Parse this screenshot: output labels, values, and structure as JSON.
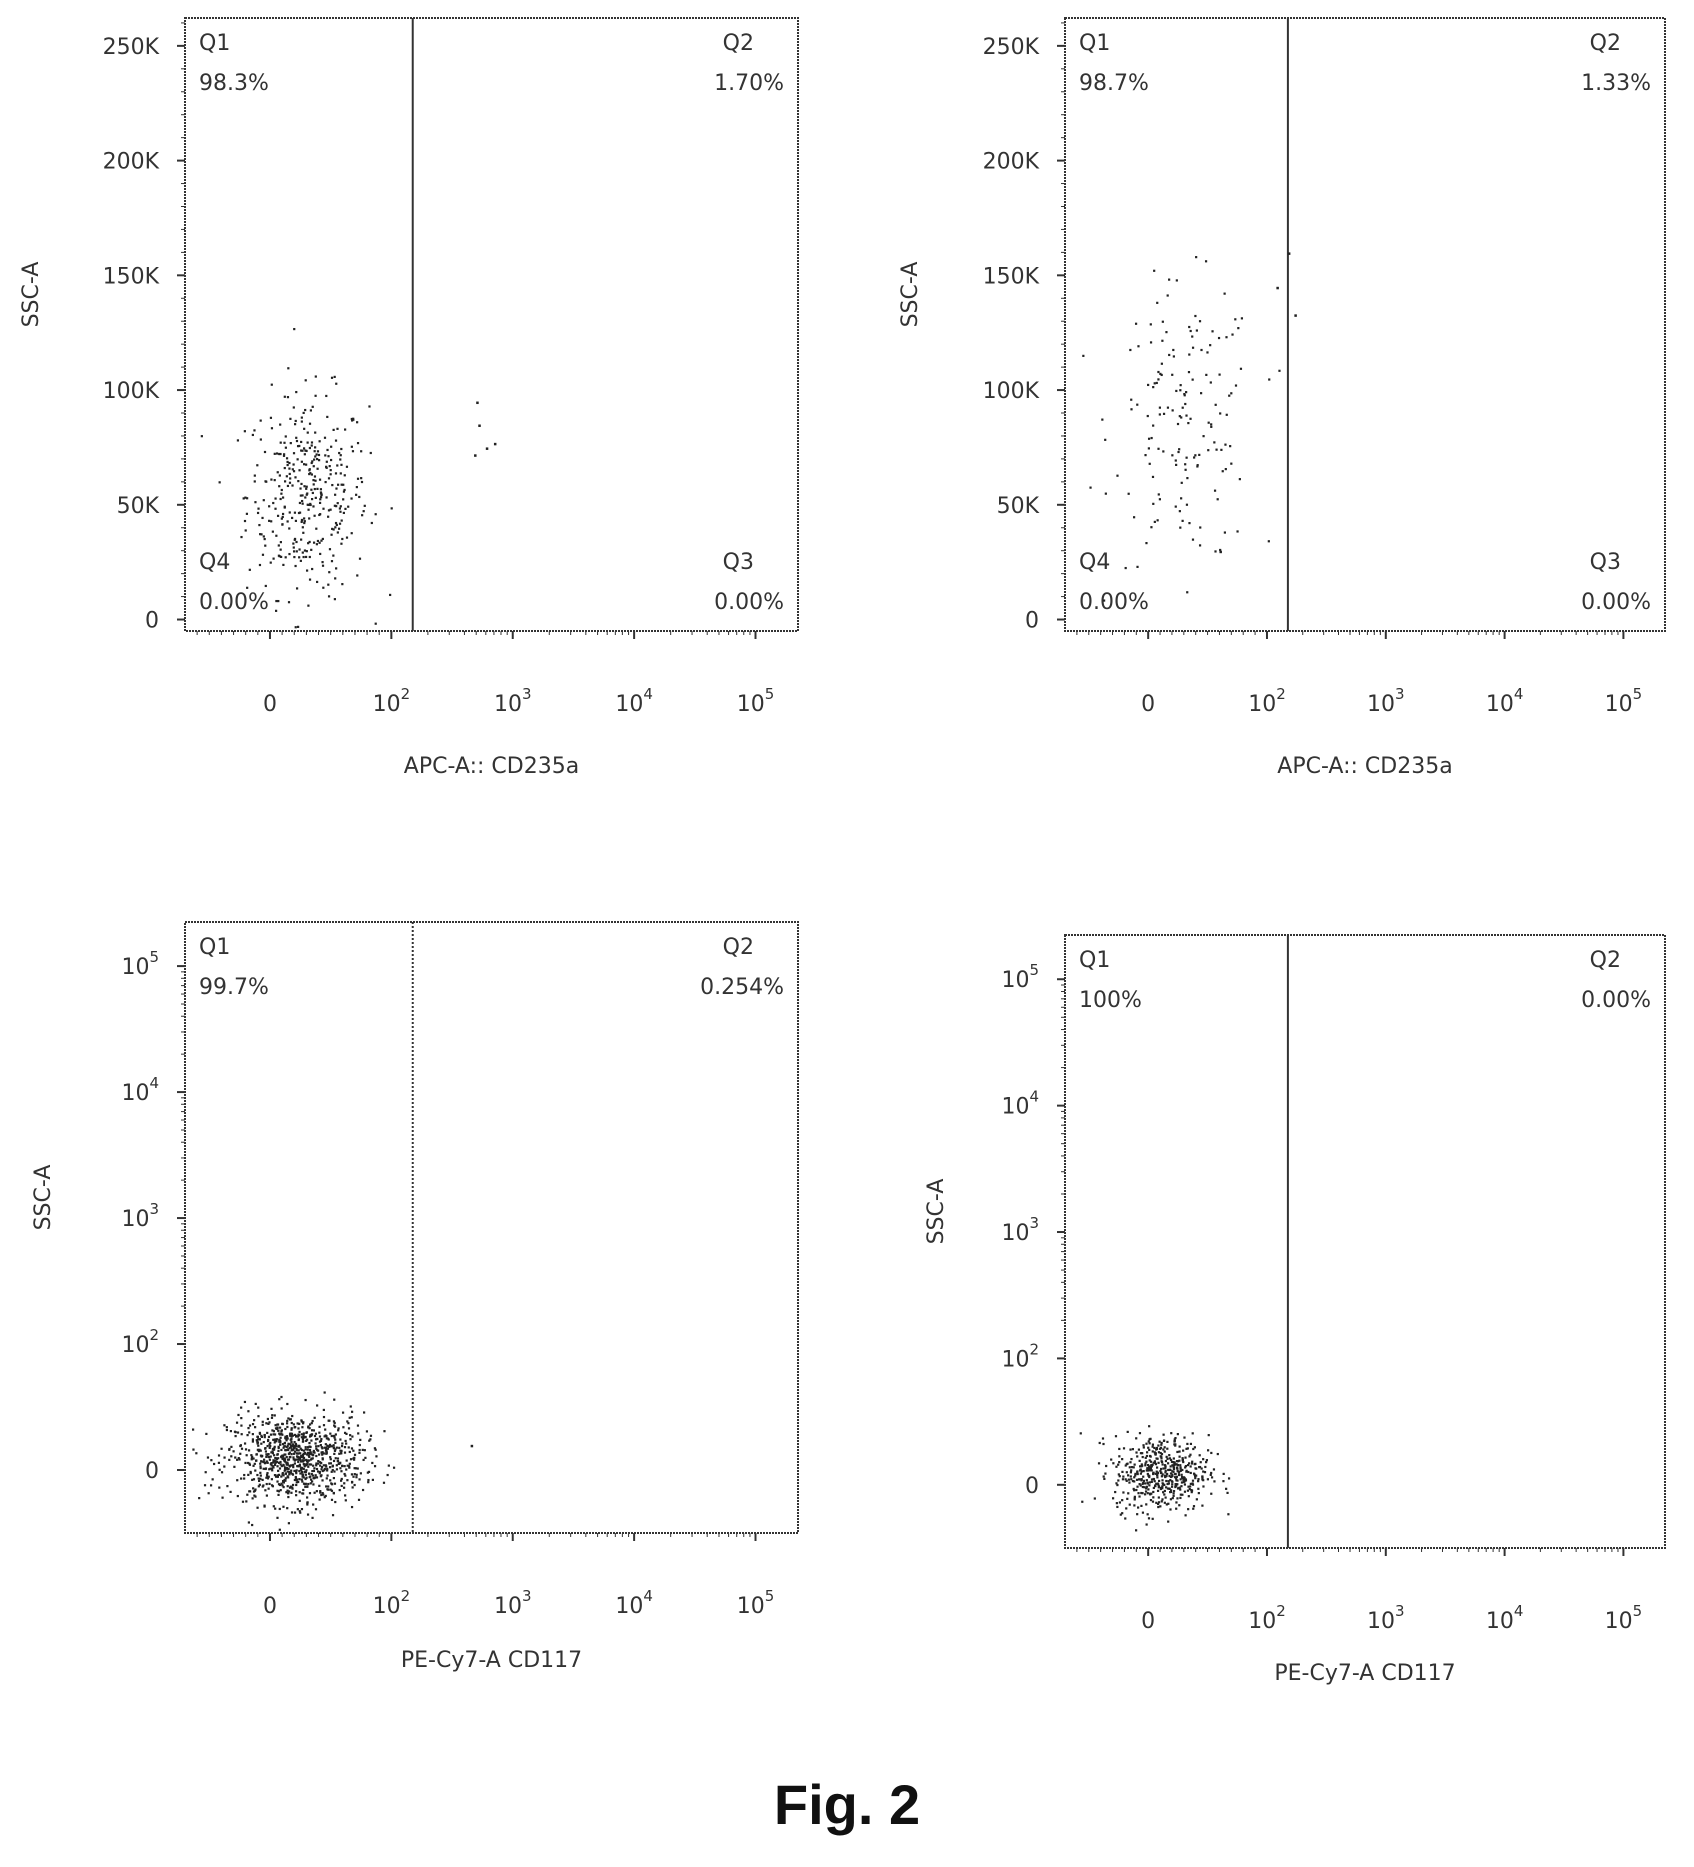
{
  "figure_caption": "Fig. 2",
  "colors": {
    "axis": "#333333",
    "dots": "#222222",
    "text": "#333333"
  },
  "chart_data": [
    {
      "type": "scatter",
      "panel": "top-left",
      "xlabel": "APC-A:: CD235a",
      "ylabel": "SSC-A",
      "x_scale": "biexponential",
      "y_scale": "linear",
      "x_ticks": [
        {
          "value": 0,
          "label": "0"
        },
        {
          "value": 100,
          "label": "10^2"
        },
        {
          "value": 1000,
          "label": "10^3"
        },
        {
          "value": 10000,
          "label": "10^4"
        },
        {
          "value": 100000,
          "label": "10^5"
        }
      ],
      "y_ticks": [
        {
          "value": 0,
          "label": "0"
        },
        {
          "value": 50000,
          "label": "50K"
        },
        {
          "value": 100000,
          "label": "100K"
        },
        {
          "value": 150000,
          "label": "150K"
        },
        {
          "value": 200000,
          "label": "200K"
        },
        {
          "value": 250000,
          "label": "250K"
        }
      ],
      "ylim": [
        -5000,
        262144
      ],
      "gate_x": 150,
      "quadrants": [
        {
          "name": "Q1",
          "percent": "98.3%",
          "corner": "top-left"
        },
        {
          "name": "Q2",
          "percent": "1.70%",
          "corner": "top-right"
        },
        {
          "name": "Q3",
          "percent": "0.00%",
          "corner": "bottom-right"
        },
        {
          "name": "Q4",
          "percent": "0.00%",
          "corner": "bottom-left"
        }
      ],
      "populations": [
        {
          "x_center": 30,
          "x_spread": 25,
          "y_center": 55000,
          "y_spread": 22000,
          "count": 380
        }
      ],
      "points": [
        {
          "x": 500,
          "y": 95000
        },
        {
          "x": 520,
          "y": 85000
        },
        {
          "x": 600,
          "y": 75000
        },
        {
          "x": 700,
          "y": 77000
        },
        {
          "x": 480,
          "y": 72000
        }
      ]
    },
    {
      "type": "scatter",
      "panel": "top-right",
      "xlabel": "APC-A:: CD235a",
      "ylabel": "SSC-A",
      "x_scale": "biexponential",
      "y_scale": "linear",
      "x_ticks": [
        {
          "value": 0,
          "label": "0"
        },
        {
          "value": 100,
          "label": "10^2"
        },
        {
          "value": 1000,
          "label": "10^3"
        },
        {
          "value": 10000,
          "label": "10^4"
        },
        {
          "value": 100000,
          "label": "10^5"
        }
      ],
      "y_ticks": [
        {
          "value": 0,
          "label": "0"
        },
        {
          "value": 50000,
          "label": "50K"
        },
        {
          "value": 100000,
          "label": "100K"
        },
        {
          "value": 150000,
          "label": "150K"
        },
        {
          "value": 200000,
          "label": "200K"
        },
        {
          "value": 250000,
          "label": "250K"
        }
      ],
      "ylim": [
        -5000,
        262144
      ],
      "gate_x": 150,
      "quadrants": [
        {
          "name": "Q1",
          "percent": "98.7%",
          "corner": "top-left"
        },
        {
          "name": "Q2",
          "percent": "1.33%",
          "corner": "top-right"
        },
        {
          "name": "Q3",
          "percent": "0.00%",
          "corner": "bottom-right"
        },
        {
          "name": "Q4",
          "percent": "0.00%",
          "corner": "bottom-left"
        }
      ],
      "populations": [
        {
          "x_center": 30,
          "x_spread": 30,
          "y_center": 85000,
          "y_spread": 30000,
          "count": 160
        }
      ],
      "points": [
        {
          "x": 170,
          "y": 133000
        },
        {
          "x": 150,
          "y": 160000
        },
        {
          "x": 120,
          "y": 145000
        },
        {
          "x": 60,
          "y": 30000
        }
      ]
    },
    {
      "type": "scatter",
      "panel": "bottom-left",
      "xlabel": "PE-Cy7-A  CD117",
      "ylabel": "SSC-A",
      "x_scale": "biexponential",
      "y_scale": "biexponential",
      "x_ticks": [
        {
          "value": 0,
          "label": "0"
        },
        {
          "value": 100,
          "label": "10^2"
        },
        {
          "value": 1000,
          "label": "10^3"
        },
        {
          "value": 10000,
          "label": "10^4"
        },
        {
          "value": 100000,
          "label": "10^5"
        }
      ],
      "y_ticks": [
        {
          "value": 0,
          "label": "0"
        },
        {
          "value": 100,
          "label": "10^2"
        },
        {
          "value": 1000,
          "label": "10^3"
        },
        {
          "value": 10000,
          "label": "10^4"
        },
        {
          "value": 100000,
          "label": "10^5"
        }
      ],
      "gate_x": 150,
      "quadrants": [
        {
          "name": "Q1",
          "percent": "99.7%",
          "corner": "top-left"
        },
        {
          "name": "Q2",
          "percent": "0.254%",
          "corner": "top-right"
        }
      ],
      "populations": [
        {
          "x_center": 20,
          "x_spread": 28,
          "y_center": 10,
          "y_spread": 18,
          "count": 950
        }
      ],
      "points": [
        {
          "x": 450,
          "y": 20
        }
      ]
    },
    {
      "type": "scatter",
      "panel": "bottom-right",
      "xlabel": "PE-Cy7-A  CD117",
      "ylabel": "SSC-A",
      "x_scale": "biexponential",
      "y_scale": "biexponential",
      "x_ticks": [
        {
          "value": 0,
          "label": "0"
        },
        {
          "value": 100,
          "label": "10^2"
        },
        {
          "value": 1000,
          "label": "10^3"
        },
        {
          "value": 10000,
          "label": "10^4"
        },
        {
          "value": 100000,
          "label": "10^5"
        }
      ],
      "y_ticks": [
        {
          "value": 0,
          "label": "0"
        },
        {
          "value": 100,
          "label": "10^2"
        },
        {
          "value": 1000,
          "label": "10^3"
        },
        {
          "value": 10000,
          "label": "10^4"
        },
        {
          "value": 100000,
          "label": "10^5"
        }
      ],
      "gate_x": 150,
      "quadrants": [
        {
          "name": "Q1",
          "percent": "100%",
          "corner": "top-left"
        },
        {
          "name": "Q2",
          "percent": "0.00%",
          "corner": "top-right"
        }
      ],
      "populations": [
        {
          "x_center": 10,
          "x_spread": 20,
          "y_center": 10,
          "y_spread": 15,
          "count": 520
        }
      ],
      "points": []
    }
  ]
}
